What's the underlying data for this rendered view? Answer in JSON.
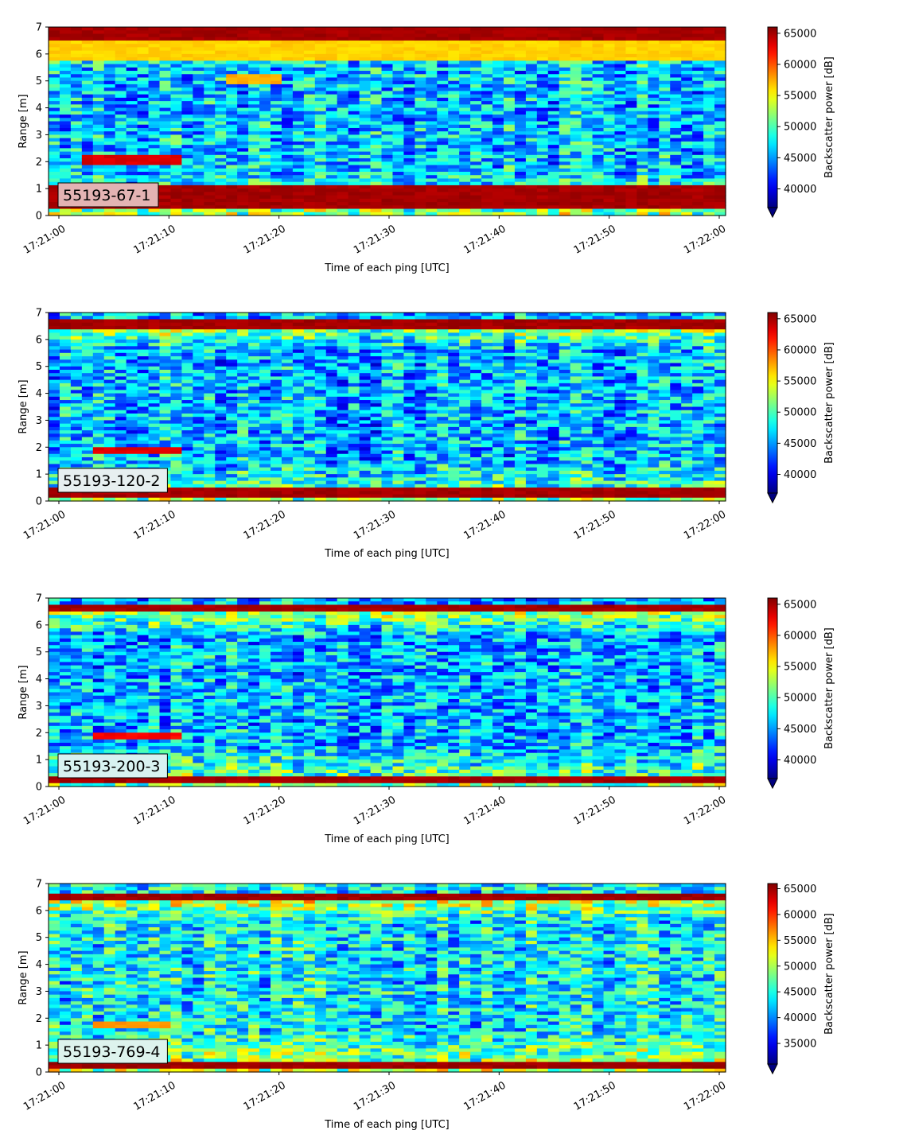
{
  "colormap": "jet",
  "chart_data": [
    {
      "type": "heatmap",
      "label": "55193-67-1",
      "label_box_color": "#e3b3b3",
      "xlabel": "Time of each ping [UTC]",
      "ylabel": "Range [m]",
      "xlim": [
        "17:21:00",
        "17:22:00"
      ],
      "xticks": [
        "17:21:00",
        "17:21:10",
        "17:21:20",
        "17:21:30",
        "17:21:40",
        "17:21:50",
        "17:22:00"
      ],
      "ylim": [
        0,
        7
      ],
      "yticks": [
        "0",
        "1",
        "2",
        "3",
        "4",
        "5",
        "6",
        "7"
      ],
      "colorbar_label": "Backscatter power [dB]",
      "colorbar_ticks": [
        "40000",
        "45000",
        "50000",
        "55000",
        "60000",
        "65000"
      ],
      "vmin": 37000,
      "vmax": 66000,
      "features": [
        {
          "description": "surface band",
          "range_m": [
            6.5,
            7.0
          ],
          "value": 65500
        },
        {
          "description": "near-surface layer",
          "range_m": [
            5.8,
            6.5
          ],
          "value": 57000
        },
        {
          "description": "bottom band",
          "range_m": [
            0.2,
            1.1
          ],
          "value": 65500
        },
        {
          "description": "target",
          "time_s": [
            2,
            11
          ],
          "range_m": [
            1.9,
            2.3
          ],
          "value": 64000
        },
        {
          "description": "target",
          "time_s": [
            15,
            19.5
          ],
          "range_m": [
            4.9,
            5.3
          ],
          "value": 58000
        }
      ]
    },
    {
      "type": "heatmap",
      "label": "55193-120-2",
      "label_box_color": "#e7eff0",
      "xlabel": "Time of each ping [UTC]",
      "ylabel": "Range [m]",
      "xlim": [
        "17:21:00",
        "17:22:00"
      ],
      "xticks": [
        "17:21:00",
        "17:21:10",
        "17:21:20",
        "17:21:30",
        "17:21:40",
        "17:21:50",
        "17:22:00"
      ],
      "ylim": [
        0,
        7
      ],
      "yticks": [
        "0",
        "1",
        "2",
        "3",
        "4",
        "5",
        "6",
        "7"
      ],
      "colorbar_label": "Backscatter power [dB]",
      "colorbar_ticks": [
        "40000",
        "45000",
        "50000",
        "55000",
        "60000",
        "65000"
      ],
      "vmin": 37000,
      "vmax": 66000,
      "features": [
        {
          "description": "surface band",
          "range_m": [
            6.4,
            6.8
          ],
          "value": 65500
        },
        {
          "description": "bottom band",
          "range_m": [
            0.1,
            0.5
          ],
          "value": 65500
        },
        {
          "description": "target",
          "time_s": [
            3.5,
            11
          ],
          "range_m": [
            1.75,
            1.95
          ],
          "value": 64000
        }
      ]
    },
    {
      "type": "heatmap",
      "label": "55193-200-3",
      "label_box_color": "#d8f2f1",
      "xlabel": "Time of each ping [UTC]",
      "ylabel": "Range [m]",
      "xlim": [
        "17:21:00",
        "17:22:00"
      ],
      "xticks": [
        "17:21:00",
        "17:21:10",
        "17:21:20",
        "17:21:30",
        "17:21:40",
        "17:21:50",
        "17:22:00"
      ],
      "ylim": [
        0,
        7
      ],
      "yticks": [
        "0",
        "1",
        "2",
        "3",
        "4",
        "5",
        "6",
        "7"
      ],
      "colorbar_label": "Backscatter power [dB]",
      "colorbar_ticks": [
        "40000",
        "45000",
        "50000",
        "55000",
        "60000",
        "65000"
      ],
      "vmin": 37000,
      "vmax": 66000,
      "features": [
        {
          "description": "surface band",
          "range_m": [
            6.45,
            6.7
          ],
          "value": 65500
        },
        {
          "description": "bottom band",
          "range_m": [
            0.15,
            0.4
          ],
          "value": 65500
        },
        {
          "description": "target",
          "time_s": [
            3.5,
            11
          ],
          "range_m": [
            1.75,
            1.95
          ],
          "value": 63000
        }
      ]
    },
    {
      "type": "heatmap",
      "label": "55193-769-4",
      "label_box_color": "#ddf3ed",
      "xlabel": "Time of each ping [UTC]",
      "ylabel": "Range [m]",
      "xlim": [
        "17:21:00",
        "17:22:00"
      ],
      "xticks": [
        "17:21:00",
        "17:21:10",
        "17:21:20",
        "17:21:30",
        "17:21:40",
        "17:21:50",
        "17:22:00"
      ],
      "ylim": [
        0,
        7
      ],
      "yticks": [
        "0",
        "1",
        "2",
        "3",
        "4",
        "5",
        "6",
        "7"
      ],
      "colorbar_label": "Backscatter power [dB]",
      "colorbar_ticks": [
        "35000",
        "40000",
        "45000",
        "50000",
        "55000",
        "60000",
        "65000"
      ],
      "vmin": 31000,
      "vmax": 66000,
      "features": [
        {
          "description": "surface band",
          "range_m": [
            6.35,
            6.6
          ],
          "value": 65500
        },
        {
          "description": "bottom band",
          "range_m": [
            0.15,
            0.35
          ],
          "value": 65500
        },
        {
          "description": "target",
          "time_s": [
            3,
            9.5
          ],
          "range_m": [
            1.65,
            1.85
          ],
          "value": 57000
        }
      ]
    }
  ]
}
